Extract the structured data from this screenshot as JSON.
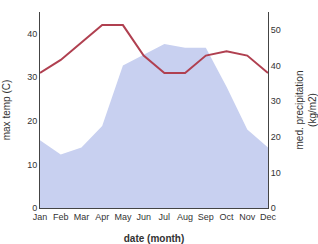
{
  "chart_data": {
    "type": "line",
    "categories": [
      "Jan",
      "Feb",
      "Mar",
      "Apr",
      "May",
      "Jun",
      "Jul",
      "Aug",
      "Sep",
      "Oct",
      "Nov",
      "Dec"
    ],
    "xlabel": "date (month)",
    "ylabel": "max temp (C)",
    "y2label": "med. precipitation\n(kg/m2)",
    "series": [
      {
        "type": "area",
        "axis": "y2",
        "color": "#c8d0f0",
        "values": [
          19,
          15,
          17,
          23,
          40,
          43,
          46,
          45,
          45,
          34,
          22,
          17
        ]
      },
      {
        "type": "line",
        "color": "#b04050",
        "values": [
          31,
          34,
          38,
          42,
          42,
          35,
          31,
          31,
          35,
          36,
          35,
          31
        ]
      }
    ],
    "ylim": [
      0,
      45
    ],
    "yticks": [
      0,
      10,
      20,
      30,
      40
    ],
    "y2lim": [
      0,
      55
    ],
    "y2ticks": [
      0,
      10,
      20,
      30,
      40,
      50
    ],
    "grid": false
  }
}
